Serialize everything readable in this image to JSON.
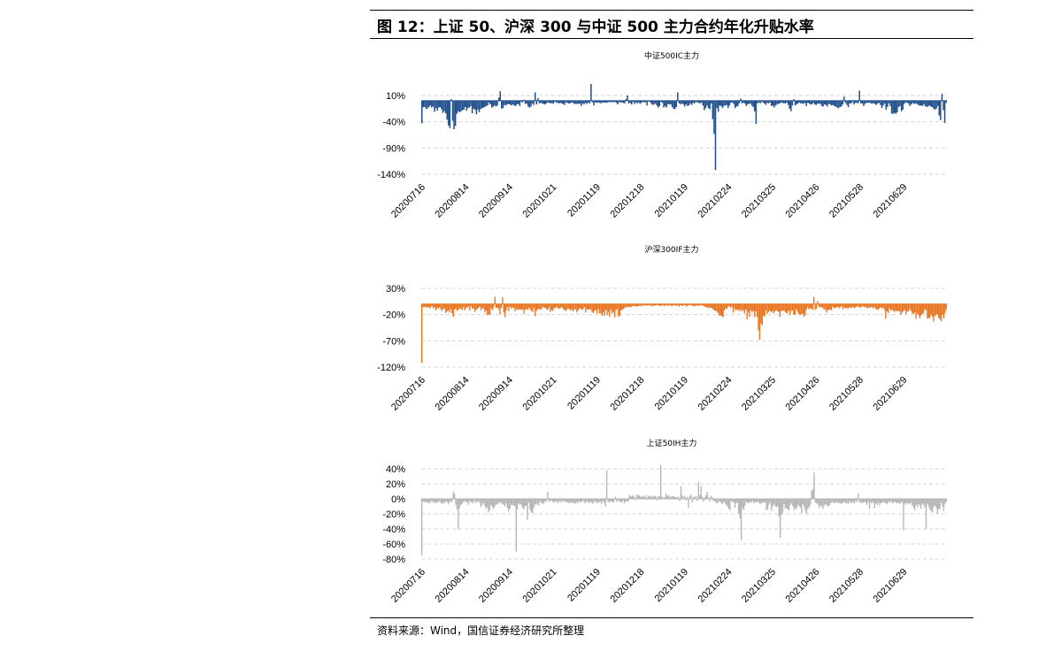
{
  "figure": {
    "title": "图 12：上证 50、沪深 300 与中证 500 主力合约年化升贴水率",
    "source": "资料来源：Wind，国信证券经济研究所整理"
  },
  "chart_data": [
    {
      "type": "bar",
      "title": "中证500IC主力",
      "color": "#1f4e8c",
      "ylim": [
        -140,
        10
      ],
      "yticks": [
        10,
        -40,
        -90,
        -140
      ],
      "ytick_labels": [
        "10%",
        "-40%",
        "-90%",
        "-140%"
      ],
      "grid": true,
      "x_tick_labels": [
        "20200716",
        "20200814",
        "20200914",
        "20201021",
        "20201119",
        "20201218",
        "20210119",
        "20210224",
        "20210325",
        "20210426",
        "20210528",
        "20210629"
      ],
      "x_range": [
        "20200716",
        "20210729"
      ],
      "values": [
        -43,
        -12,
        -12,
        -15,
        -15,
        -12,
        -9,
        -13,
        -11,
        -21,
        -14,
        -19,
        -13,
        -12,
        -16,
        -23,
        -20,
        -24,
        -36,
        -47,
        -52,
        3,
        -38,
        -54,
        -48,
        -25,
        -20,
        -22,
        -20,
        -18,
        -17,
        -12,
        -19,
        -14,
        -13,
        -10,
        -24,
        -15,
        -17,
        -26,
        -17,
        -22,
        -16,
        -14,
        -13,
        -12,
        -10,
        -9,
        -4,
        -7,
        -13,
        -11,
        -9,
        -11,
        -9,
        6,
        18,
        -15,
        -14,
        -8,
        -9,
        -7,
        -6,
        -7,
        -9,
        -7,
        -9,
        -10,
        -7,
        -6,
        -10,
        -2,
        -3,
        2,
        -6,
        -5,
        -11,
        -13,
        -11,
        -5,
        -8,
        16,
        -7,
        5,
        -5,
        -4,
        -5,
        -6,
        -7,
        -5,
        -3,
        -4,
        -5,
        -4,
        -6,
        -2,
        -3,
        -4,
        -5,
        -4,
        -5,
        -6,
        -8,
        -3,
        -4,
        -5,
        -5,
        -3,
        -4,
        -6,
        -6,
        -6,
        -6,
        -5,
        -10,
        -5,
        -7,
        -4,
        -6,
        -3,
        -5,
        32,
        -3,
        -9,
        -3,
        -4,
        -3,
        -4,
        -5,
        -3,
        -4,
        -3,
        -4,
        -3,
        -2,
        -3,
        -2,
        -3,
        -2,
        -4,
        -7,
        -3,
        -3,
        -3,
        -4,
        -5,
        3,
        10,
        -5,
        -4,
        -7,
        -2,
        -6,
        -3,
        -5,
        -3,
        -6,
        -4,
        -2,
        -3,
        -3,
        -9,
        -1,
        -2,
        -5,
        -8,
        -7,
        -5,
        -9,
        -13,
        -10,
        -2,
        -4,
        -13,
        -10,
        -13,
        -6,
        -7,
        -7,
        -12,
        -15,
        -16,
        -12,
        16,
        -5,
        -7,
        -5,
        -7,
        -11,
        -7,
        -10,
        -9,
        -5,
        -8,
        -4,
        -5,
        -2,
        -3,
        -4,
        -5,
        -3,
        -9,
        -18,
        -14,
        -9,
        -14,
        -16,
        -5,
        -35,
        -63,
        -132,
        -14,
        -21,
        -9,
        -10,
        -14,
        -10,
        -9,
        -8,
        -14,
        -9,
        -4,
        -3,
        -6,
        -14,
        -11,
        -10,
        -5,
        4,
        -5,
        -4,
        -5,
        -10,
        -7,
        -6,
        -5,
        -9,
        -12,
        -20,
        -44,
        -5,
        -3,
        -5,
        -2,
        -3,
        -5,
        -8,
        -4,
        -5,
        -3,
        -10,
        -9,
        -13,
        -9,
        -7,
        -6,
        -5,
        -3,
        -4,
        -5,
        -5,
        -3,
        -8,
        -15,
        -20,
        -9,
        3,
        -9,
        -7,
        -5,
        -3,
        -5,
        -5,
        -6,
        -4,
        -10,
        -4,
        -5,
        -7,
        -7,
        -4,
        -7,
        -8,
        -5,
        -6,
        -6,
        -10,
        -11,
        -7,
        -8,
        -11,
        -6,
        -7,
        -9,
        -8,
        -10,
        -11,
        -13,
        -14,
        -12,
        -11,
        -7,
        8,
        -4,
        -8,
        -12,
        -5,
        -5,
        -2,
        -7,
        -4,
        -4,
        -5,
        19,
        -5,
        -5,
        -10,
        -6,
        -4,
        -4,
        -3,
        -5,
        -5,
        -5,
        -6,
        -8,
        -5,
        -4,
        -8,
        -14,
        -9,
        -5,
        -17,
        -12,
        -5,
        -10,
        -24,
        -25,
        -23,
        -25,
        -22,
        -12,
        -10,
        -20,
        -17,
        -6,
        -3,
        -4,
        -5,
        -10,
        -7,
        -4,
        -6,
        -5,
        -6,
        -8,
        -9,
        -9,
        -10,
        -7,
        -10,
        -12,
        -11,
        -9,
        -11,
        -12,
        -15,
        -17,
        -15,
        -10,
        -28,
        -37,
        13,
        -18,
        -42,
        -4
      ]
    },
    {
      "type": "bar",
      "title": "沪深300IF主力",
      "color": "#e8731e",
      "ylim": [
        -120,
        30
      ],
      "yticks": [
        30,
        -20,
        -70,
        -120
      ],
      "ytick_labels": [
        "30%",
        "-20%",
        "-70%",
        "-120%"
      ],
      "grid": true,
      "x_tick_labels": [
        "20200716",
        "20200814",
        "20200914",
        "20201021",
        "20201119",
        "20201218",
        "20210119",
        "20210224",
        "20210325",
        "20210426",
        "20210528",
        "20210629"
      ],
      "x_range": [
        "20200716",
        "20210729"
      ],
      "values": [
        -112,
        -6,
        -6,
        -5,
        -7,
        -5,
        -8,
        -6,
        -4,
        -8,
        -6,
        -12,
        -7,
        -9,
        -6,
        -10,
        -13,
        -9,
        -9,
        -17,
        -14,
        -12,
        -16,
        -10,
        -18,
        -24,
        -10,
        -9,
        -13,
        -11,
        -8,
        -9,
        -11,
        -5,
        -12,
        -8,
        -6,
        -5,
        -12,
        -4,
        -9,
        -8,
        -15,
        -11,
        -9,
        -7,
        -5,
        -12,
        -8,
        -9,
        -16,
        -12,
        -21,
        -20,
        -20,
        -8,
        -12,
        -6,
        14,
        -7,
        -7,
        -10,
        -20,
        -7,
        13,
        -16,
        -25,
        -12,
        -6,
        -13,
        -5,
        -9,
        -6,
        -8,
        -14,
        -9,
        -11,
        -10,
        -10,
        -11,
        -10,
        -18,
        -11,
        -9,
        -11,
        -7,
        -10,
        -13,
        -15,
        -7,
        -23,
        -13,
        -9,
        -10,
        -10,
        -9,
        -5,
        -7,
        -7,
        -10,
        -11,
        -6,
        -15,
        -11,
        -13,
        -8,
        -7,
        -5,
        -8,
        -9,
        -7,
        -6,
        -9,
        -11,
        -13,
        -11,
        -8,
        -10,
        -12,
        -10,
        -14,
        -10,
        -10,
        -16,
        -12,
        -8,
        -10,
        -10,
        -10,
        -6,
        -16,
        -9,
        -11,
        -10,
        -10,
        -15,
        -17,
        -13,
        -11,
        -18,
        -10,
        -18,
        -18,
        -22,
        -15,
        -22,
        -11,
        -21,
        -15,
        -24,
        -11,
        -18,
        -15,
        -25,
        -12,
        -9,
        -24,
        -22,
        -12,
        -11,
        -9,
        -7,
        -5,
        -6,
        -5,
        -5,
        -6,
        -4,
        -3,
        -4,
        -5,
        -4,
        -4,
        -3,
        -4,
        -3,
        -3,
        -2,
        -3,
        -3,
        -2,
        -3,
        -3,
        -4,
        -3,
        -3,
        -2,
        -2,
        -3,
        -4,
        -3,
        -2,
        -4,
        -3,
        -2,
        -3,
        -3,
        -2,
        -4,
        -3,
        -2,
        -3,
        -3,
        -2,
        -5,
        -2,
        -3,
        -4,
        -2,
        -2,
        -5,
        -3,
        -2,
        -2,
        -2,
        -4,
        -4,
        -3,
        -3,
        -3,
        -3,
        -3,
        -2,
        -3,
        -4,
        -6,
        -6,
        -8,
        -6,
        -8,
        -7,
        -10,
        -12,
        -13,
        -14,
        -17,
        -22,
        -22,
        -23,
        -25,
        -12,
        -8,
        -9,
        -5,
        -4,
        -7,
        -5,
        -16,
        -8,
        -12,
        -10,
        -13,
        -10,
        -14,
        -11,
        -13,
        -18,
        -10,
        -29,
        -15,
        -24,
        -12,
        -16,
        -13,
        -25,
        -14,
        -24,
        -50,
        -68,
        -37,
        -40,
        -22,
        -24,
        -12,
        -19,
        -15,
        -12,
        -16,
        -13,
        -18,
        -14,
        -12,
        -13,
        -15,
        -25,
        -13,
        -14,
        -12,
        -14,
        -17,
        -17,
        -12,
        -21,
        -13,
        -12,
        -20,
        -20,
        -9,
        -14,
        -19,
        -21,
        -19,
        -18,
        -24,
        -21,
        -11,
        -6,
        -10,
        -8,
        -9,
        -11,
        14,
        -11,
        -9,
        6,
        -5,
        -6,
        -6,
        -7,
        -10,
        -10,
        -16,
        -12,
        -11,
        -10,
        -12,
        -5,
        -7,
        -8,
        -6,
        -5,
        -8,
        -6,
        -4,
        -10,
        -6,
        -8,
        -7,
        -9,
        -6,
        -7,
        -7,
        -5,
        -8,
        -6,
        -5,
        -4,
        -6,
        -7,
        -5,
        -4,
        -6,
        -5,
        -8,
        -7,
        -6,
        -7,
        -5,
        -8,
        -5,
        -9,
        -10,
        -11,
        -8,
        -6,
        -8,
        -7,
        -11,
        -28,
        -14,
        -17,
        -8,
        -12,
        -11,
        -12,
        -15,
        -12,
        -14,
        -13,
        -14,
        -20,
        -16,
        -14,
        -11,
        -19,
        -14,
        -14,
        -9,
        -13,
        -17,
        -19,
        -16,
        -28,
        -18,
        -21,
        -27,
        -22,
        -19,
        -17,
        -10,
        -12,
        -28,
        -26,
        -27,
        -20,
        -24,
        -33,
        -23,
        -20,
        -19,
        -26,
        -29,
        -33,
        -20,
        -27,
        -17,
        -10
      ]
    },
    {
      "type": "bar",
      "title": "上证50IH主力",
      "color": "#b4b4b4",
      "ylim": [
        -80,
        40
      ],
      "yticks": [
        40,
        20,
        0,
        -20,
        -40,
        -60,
        -80
      ],
      "ytick_labels": [
        "40%",
        "20%",
        "0%",
        "-20%",
        "-40%",
        "-60%",
        "-80%"
      ],
      "grid": true,
      "x_tick_labels": [
        "20200716",
        "20200814",
        "20200914",
        "20201021",
        "20201119",
        "20201218",
        "20210119",
        "20210224",
        "20210325",
        "20210426",
        "20210528",
        "20210629"
      ],
      "x_range": [
        "20200716",
        "20210729"
      ],
      "values": [
        -75,
        -4,
        -4,
        -5,
        -4,
        -5,
        -6,
        -4,
        -3,
        -5,
        -4,
        -6,
        -5,
        -4,
        -3,
        -5,
        -7,
        -5,
        -6,
        -3,
        -4,
        -7,
        -5,
        -3,
        -4,
        10,
        7,
        -8,
        -14,
        -40,
        -12,
        -8,
        -7,
        -4,
        -3,
        -5,
        -4,
        -8,
        -3,
        -5,
        -4,
        -6,
        -2,
        -5,
        -4,
        -3,
        -5,
        -11,
        -8,
        -5,
        -9,
        -13,
        -11,
        -18,
        -15,
        -8,
        -11,
        -13,
        -10,
        -7,
        -8,
        -5,
        -6,
        -4,
        -7,
        -8,
        -10,
        -6,
        -12,
        -17,
        -13,
        -8,
        -9,
        -8,
        -10,
        -70,
        -14,
        -6,
        -8,
        -7,
        -12,
        -14,
        -10,
        -9,
        -28,
        -5,
        -14,
        -18,
        -19,
        -12,
        -7,
        -8,
        -6,
        -9,
        -4,
        -5,
        -7,
        -6,
        -3,
        -4,
        9,
        -4,
        -3,
        -2,
        -4,
        -5,
        -4,
        -3,
        -6,
        -4,
        -3,
        -5,
        -2,
        -4,
        -3,
        -5,
        -4,
        -6,
        -5,
        -4,
        -6,
        -5,
        -7,
        -4,
        -6,
        -3,
        -5,
        -4,
        -2,
        -4,
        -6,
        -3,
        -4,
        -6,
        -4,
        -5,
        -7,
        -4,
        -3,
        -6,
        -4,
        -5,
        -4,
        -7,
        -3,
        -5,
        -10,
        38,
        -4,
        -5,
        -3,
        -4,
        -5,
        -3,
        3,
        -4,
        -2,
        -3,
        -4,
        -5,
        -2,
        -6,
        -4,
        -3,
        -4,
        5,
        4,
        3,
        5,
        3,
        -2,
        6,
        4,
        5,
        3,
        3,
        4,
        2,
        5,
        -1,
        4,
        3,
        4,
        3,
        3,
        4,
        4,
        -2,
        4,
        3,
        45,
        3,
        1,
        2,
        7,
        4,
        5,
        2,
        3,
        3,
        4,
        3,
        2,
        2,
        3,
        -3,
        17,
        5,
        2,
        4,
        -2,
        3,
        -12,
        4,
        6,
        -5,
        3,
        2,
        4,
        -3,
        22,
        5,
        17,
        3,
        -4,
        2,
        5,
        9,
        2,
        -4,
        4,
        2,
        -3,
        -3,
        -5,
        -6,
        -3,
        -4,
        -5,
        -7,
        -4,
        -6,
        -8,
        -10,
        -13,
        -15,
        -3,
        -4,
        -5,
        -12,
        -6,
        -5,
        -20,
        -26,
        -55,
        -12,
        -15,
        -9,
        -4,
        -5,
        -6,
        -4,
        -5,
        -3,
        -6,
        -4,
        -5,
        -4,
        -5,
        -7,
        -5,
        -6,
        -4,
        -5,
        -15,
        -14,
        -8,
        -5,
        -16,
        -10,
        -7,
        -10,
        -11,
        -10,
        -24,
        -52,
        -21,
        -18,
        -7,
        -13,
        -12,
        -14,
        -15,
        -8,
        -6,
        -10,
        -15,
        -12,
        -14,
        -8,
        -10,
        -12,
        -19,
        -7,
        -11,
        -16,
        -20,
        -13,
        -11,
        -8,
        11,
        13,
        35,
        -5,
        -6,
        -8,
        -12,
        -9,
        -10,
        -13,
        -9,
        -7,
        -8,
        -10,
        -9,
        -6,
        -5,
        -4,
        -6,
        -5,
        -4,
        -6,
        -5,
        -7,
        -6,
        -5,
        -4,
        -6,
        -5,
        -7,
        -3,
        -6,
        -4,
        -5,
        -6,
        -3,
        -4,
        7,
        -5,
        -4,
        -6,
        -5,
        -4,
        -5,
        -8,
        -4,
        -13,
        -5,
        -6,
        -4,
        -12,
        -6,
        -8,
        -5,
        -9,
        -6,
        -5,
        -4,
        -5,
        -6,
        -7,
        -4,
        -5,
        -3,
        -6,
        -5,
        -4,
        -5,
        -6,
        -5,
        -7,
        -4,
        -5,
        -42,
        -6,
        -8,
        -5,
        -6,
        -7,
        -5,
        -9,
        -12,
        -15,
        -8,
        -11,
        -7,
        -9,
        -13,
        -6,
        -8,
        -12,
        -40,
        -7,
        -10,
        -14,
        -16,
        -18,
        -11,
        -9,
        -12,
        -20,
        -14,
        -13,
        -5,
        -10,
        -16,
        -7,
        -4
      ]
    }
  ]
}
